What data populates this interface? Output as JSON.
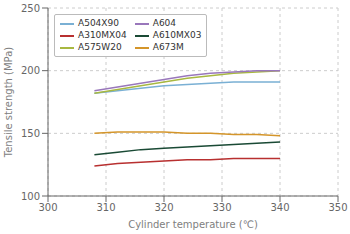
{
  "chart_data": {
    "type": "line",
    "x": [
      308,
      312,
      316,
      320,
      324,
      328,
      332,
      336,
      340
    ],
    "series": [
      {
        "name": "A504X90",
        "color": "#7ab0d4",
        "values": [
          182,
          184,
          186,
          188,
          189,
          190,
          191,
          191,
          191
        ]
      },
      {
        "name": "A310MX04",
        "color": "#b83030",
        "values": [
          124,
          126,
          127,
          128,
          129,
          129,
          130,
          130,
          130
        ]
      },
      {
        "name": "A575W20",
        "color": "#a8b840",
        "values": [
          182,
          185,
          188,
          191,
          194,
          196,
          198,
          199,
          200
        ]
      },
      {
        "name": "A604",
        "color": "#9977bb",
        "values": [
          184,
          187,
          190,
          193,
          196,
          198,
          199,
          200,
          200
        ]
      },
      {
        "name": "A610MX03",
        "color": "#1a4a35",
        "values": [
          133,
          135,
          137,
          138,
          139,
          140,
          141,
          142,
          143
        ]
      },
      {
        "name": "A673M",
        "color": "#d4952a",
        "values": [
          150,
          151,
          151,
          151,
          150,
          150,
          149,
          149,
          148
        ]
      }
    ],
    "xlim": [
      300,
      350
    ],
    "xticks": [
      300,
      310,
      320,
      330,
      340,
      350
    ],
    "ylim": [
      100,
      250
    ],
    "yticks": [
      100,
      150,
      200,
      250
    ],
    "xlabel": "Cylinder temperature (℃)",
    "ylabel": "Tensile strength (MPa)",
    "grid": true,
    "legend": "upper left"
  }
}
